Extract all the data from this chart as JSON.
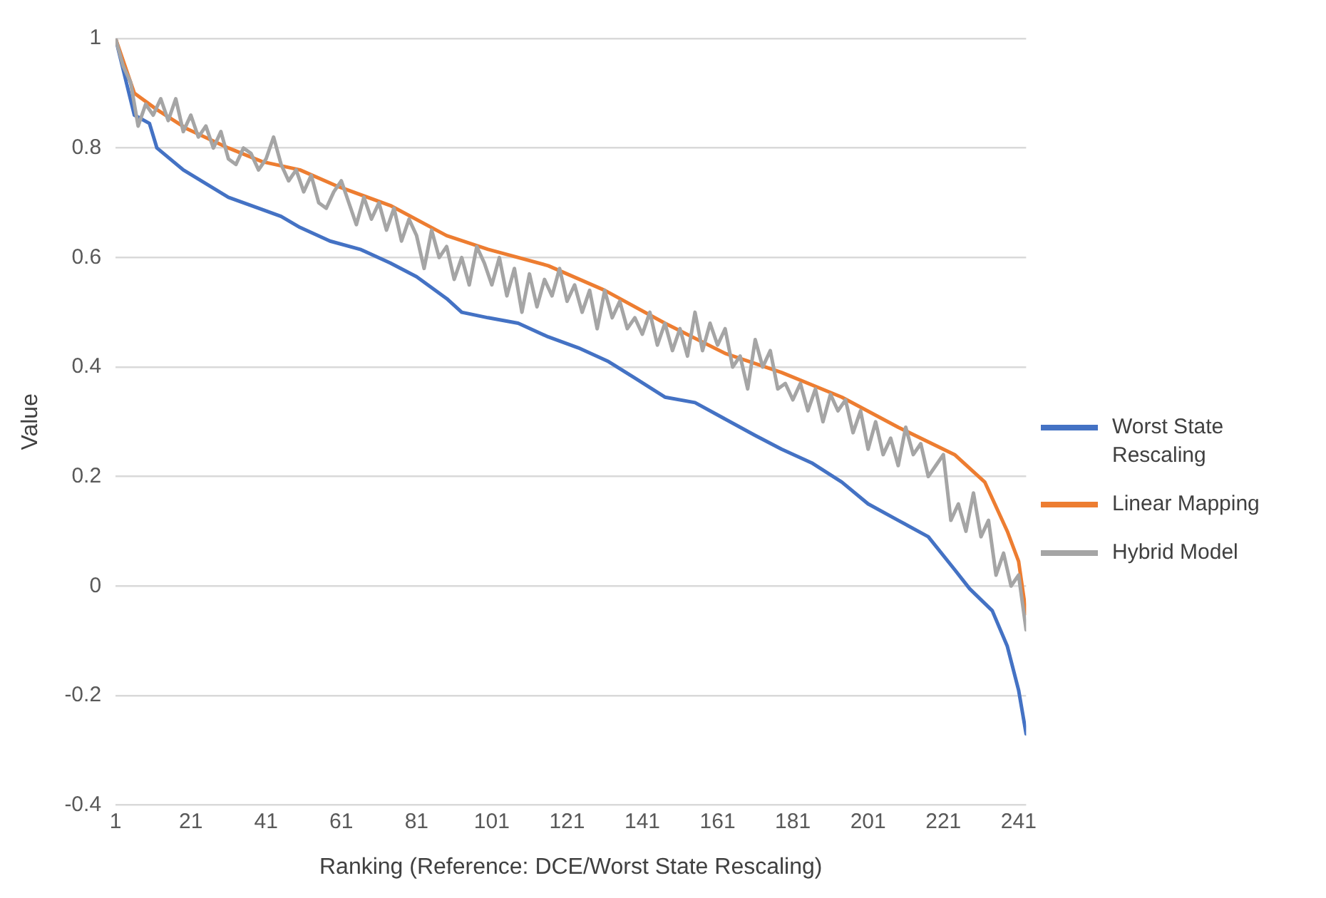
{
  "chart_data": {
    "type": "line",
    "xlabel": "Ranking (Reference: DCE/Worst State Rescaling)",
    "ylabel": "Value",
    "xlim": [
      1,
      243
    ],
    "xticks": [
      1,
      21,
      41,
      61,
      81,
      101,
      121,
      141,
      161,
      181,
      201,
      221,
      241
    ],
    "ylim": [
      -0.4,
      1
    ],
    "yticks": [
      -0.4,
      -0.2,
      0,
      0.2,
      0.4,
      0.6,
      0.8,
      1
    ],
    "grid": "y",
    "legend": "right",
    "marker": "none",
    "line_style": "solid",
    "series": [
      {
        "name": "Worst State Rescaling",
        "color": "#4472c4",
        "x": [
          1,
          6,
          10,
          12,
          19,
          25,
          31,
          39,
          45,
          50,
          58,
          66,
          74,
          81,
          89,
          93,
          100,
          108,
          116,
          124,
          132,
          139,
          147,
          155,
          163,
          171,
          178,
          186,
          194,
          201,
          209,
          217,
          224,
          228,
          234,
          238,
          241,
          243
        ],
        "values": [
          1.0,
          0.86,
          0.845,
          0.8,
          0.76,
          0.735,
          0.71,
          0.69,
          0.675,
          0.655,
          0.63,
          0.615,
          0.59,
          0.565,
          0.525,
          0.5,
          0.49,
          0.48,
          0.455,
          0.435,
          0.41,
          0.38,
          0.345,
          0.335,
          0.305,
          0.275,
          0.25,
          0.225,
          0.19,
          0.15,
          0.12,
          0.09,
          0.03,
          -0.005,
          -0.045,
          -0.11,
          -0.19,
          -0.27
        ]
      },
      {
        "name": "Linear Mapping",
        "color": "#ed7d31",
        "x": [
          1,
          6,
          12,
          20,
          31,
          40,
          50,
          60,
          74,
          89,
          100,
          116,
          131,
          147,
          163,
          178,
          194,
          209,
          224,
          232,
          238,
          241,
          243
        ],
        "values": [
          1.0,
          0.9,
          0.87,
          0.835,
          0.8,
          0.775,
          0.76,
          0.73,
          0.695,
          0.64,
          0.615,
          0.585,
          0.54,
          0.48,
          0.425,
          0.39,
          0.345,
          0.29,
          0.24,
          0.19,
          0.1,
          0.045,
          -0.05
        ]
      },
      {
        "name": "Hybrid Model",
        "color": "#a5a5a5",
        "x": [
          1,
          3,
          5,
          7,
          9,
          11,
          13,
          15,
          17,
          19,
          21,
          23,
          25,
          27,
          29,
          31,
          33,
          35,
          37,
          39,
          41,
          43,
          45,
          47,
          49,
          51,
          53,
          55,
          57,
          59,
          61,
          63,
          65,
          67,
          69,
          71,
          73,
          75,
          77,
          79,
          81,
          83,
          85,
          87,
          89,
          91,
          93,
          95,
          97,
          99,
          101,
          103,
          105,
          107,
          109,
          111,
          113,
          115,
          117,
          119,
          121,
          123,
          125,
          127,
          129,
          131,
          133,
          135,
          137,
          139,
          141,
          143,
          145,
          147,
          149,
          151,
          153,
          155,
          157,
          159,
          161,
          163,
          165,
          167,
          169,
          171,
          173,
          175,
          177,
          179,
          181,
          183,
          185,
          187,
          189,
          191,
          193,
          195,
          197,
          199,
          201,
          203,
          205,
          207,
          209,
          211,
          213,
          215,
          217,
          219,
          221,
          223,
          225,
          227,
          229,
          231,
          233,
          235,
          237,
          239,
          241,
          243
        ],
        "values": [
          1.0,
          0.95,
          0.92,
          0.84,
          0.88,
          0.86,
          0.89,
          0.85,
          0.89,
          0.83,
          0.86,
          0.82,
          0.84,
          0.8,
          0.83,
          0.78,
          0.77,
          0.8,
          0.79,
          0.76,
          0.78,
          0.82,
          0.77,
          0.74,
          0.76,
          0.72,
          0.75,
          0.7,
          0.69,
          0.72,
          0.74,
          0.7,
          0.66,
          0.71,
          0.67,
          0.7,
          0.65,
          0.69,
          0.63,
          0.67,
          0.64,
          0.58,
          0.65,
          0.6,
          0.62,
          0.56,
          0.6,
          0.55,
          0.62,
          0.59,
          0.55,
          0.6,
          0.53,
          0.58,
          0.5,
          0.57,
          0.51,
          0.56,
          0.53,
          0.58,
          0.52,
          0.55,
          0.5,
          0.54,
          0.47,
          0.54,
          0.49,
          0.52,
          0.47,
          0.49,
          0.46,
          0.5,
          0.44,
          0.48,
          0.43,
          0.47,
          0.42,
          0.5,
          0.43,
          0.48,
          0.44,
          0.47,
          0.4,
          0.42,
          0.36,
          0.45,
          0.4,
          0.43,
          0.36,
          0.37,
          0.34,
          0.37,
          0.32,
          0.36,
          0.3,
          0.35,
          0.32,
          0.34,
          0.28,
          0.32,
          0.25,
          0.3,
          0.24,
          0.27,
          0.22,
          0.29,
          0.24,
          0.26,
          0.2,
          0.22,
          0.24,
          0.12,
          0.15,
          0.1,
          0.17,
          0.09,
          0.12,
          0.02,
          0.06,
          0.0,
          0.02,
          -0.08
        ]
      }
    ]
  }
}
